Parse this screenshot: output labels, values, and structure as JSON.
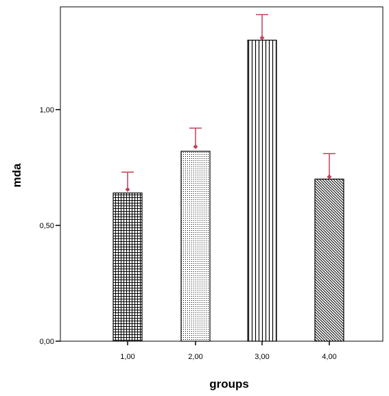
{
  "chart_data": {
    "type": "bar",
    "title": "",
    "xlabel": "groups",
    "ylabel": "mda",
    "categories": [
      "1,00",
      "2,00",
      "3,00",
      "4,00"
    ],
    "series": [
      {
        "values": [
          0.64,
          0.82,
          1.3,
          0.7
        ],
        "error_upper": [
          0.73,
          0.92,
          1.41,
          0.81
        ],
        "error_marker": [
          0.655,
          0.84,
          1.31,
          0.71
        ]
      }
    ],
    "ylim": [
      0,
      1.45
    ],
    "yticks": [
      0.0,
      0.5,
      1.0
    ],
    "ytick_labels": [
      "0,00",
      "0,50",
      "1,00"
    ],
    "grid": false,
    "legend": "none",
    "bar_patterns": [
      "grid-hatch",
      "dots",
      "vertical-lines",
      "diagonal-hatch"
    ],
    "colors": {
      "bar_fill": "#ffffff",
      "bar_pattern": "#000000",
      "error_bar": "#c0405a",
      "axis": "#000000"
    }
  }
}
